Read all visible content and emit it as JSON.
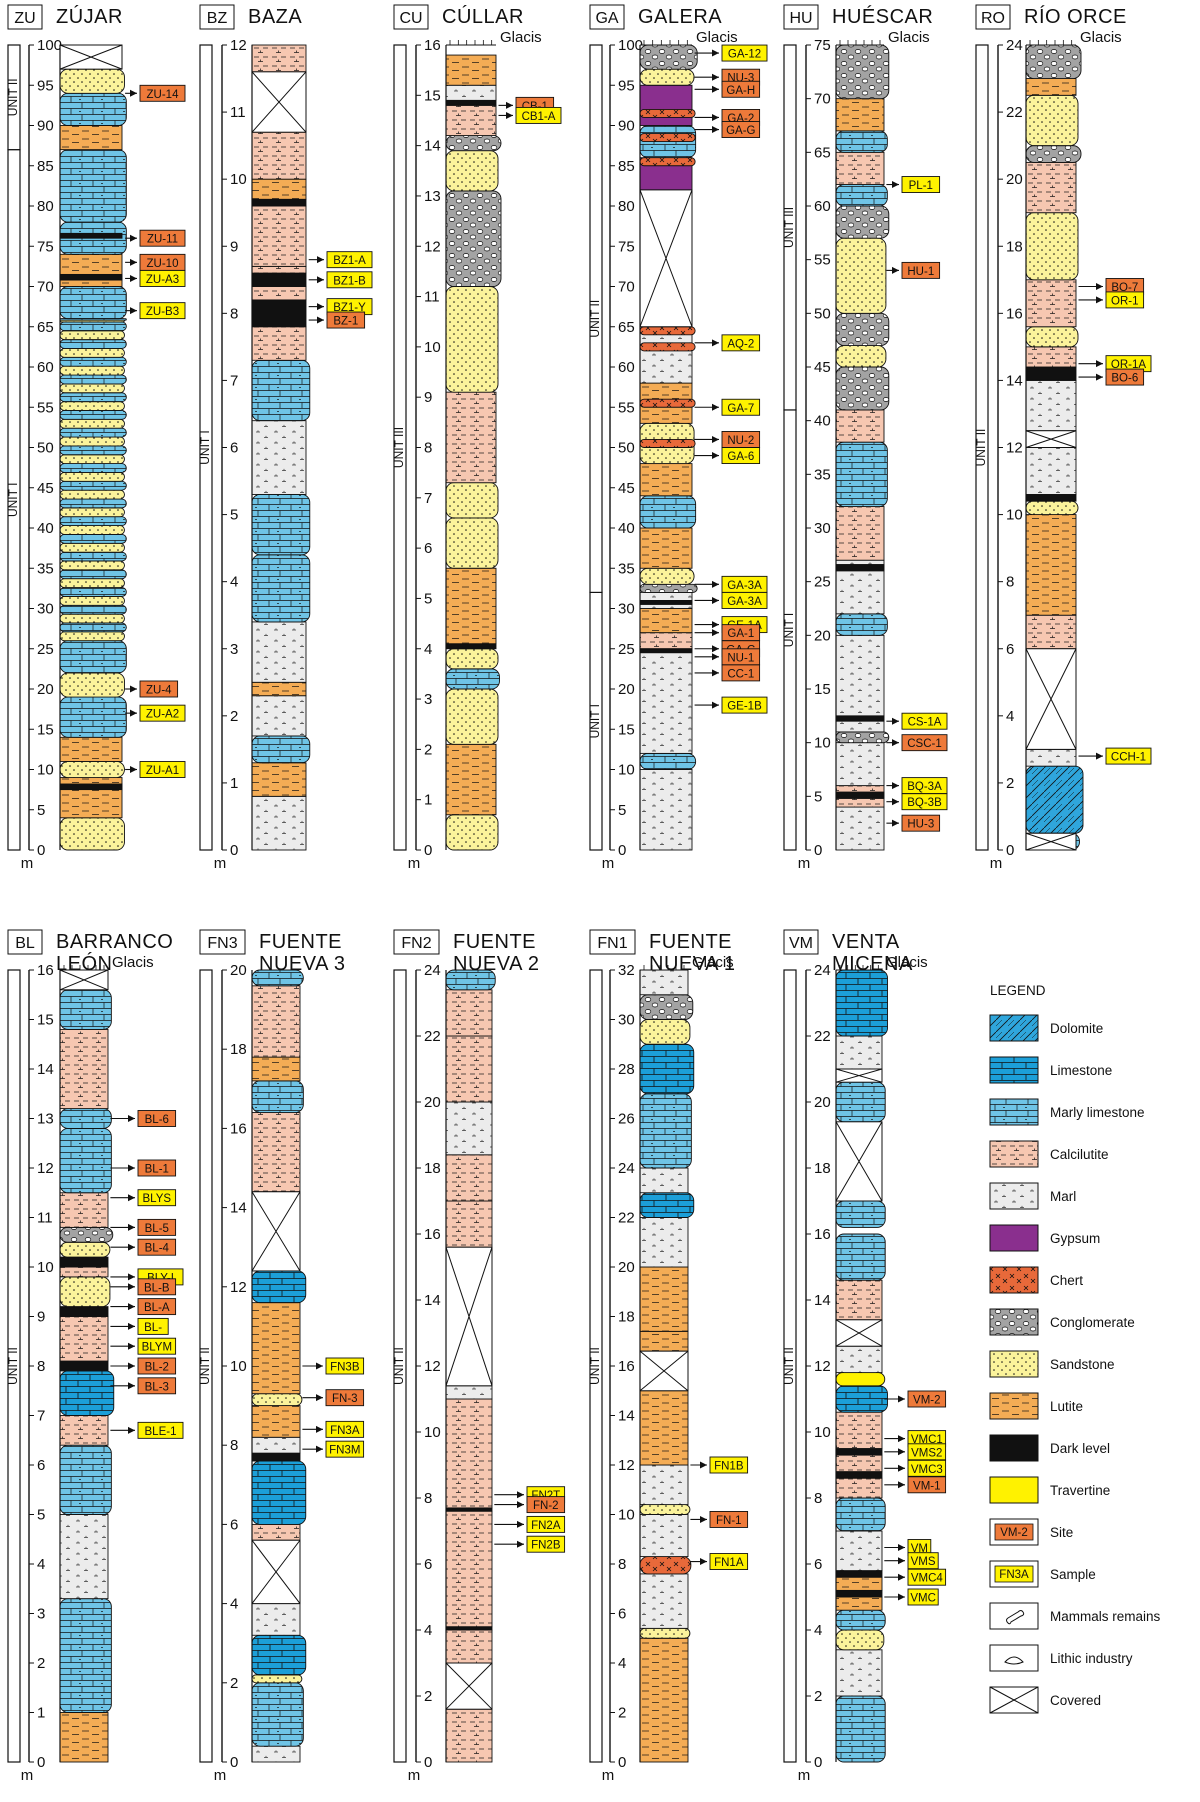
{
  "colors": {
    "dolomite": "#2fa6dc",
    "limestone": "#1c9fd8",
    "marly_limestone": "#6fc4e6",
    "calcilutite": "#f6c7b1",
    "marl": "#ececec",
    "gypsum": "#8a2f8e",
    "chert": "#e8693a",
    "conglomerate": "#a3a3a3",
    "sandstone": "#fbf39b",
    "lutite": "#f4ac55",
    "dark_level": "#111111",
    "travertine": "#fff200",
    "site_tag": "#ee7a3a",
    "sample_tag": "#fff200",
    "ink": "#111111"
  },
  "glacis_label": "Glacis",
  "axis_unit": "m",
  "sections": [
    {
      "key": "zu",
      "code": "ZU",
      "title": [
        "ZÚJAR"
      ],
      "max": 100,
      "ticks": [
        0,
        5,
        10,
        15,
        20,
        25,
        30,
        35,
        40,
        45,
        50,
        55,
        60,
        65,
        70,
        75,
        80,
        85,
        90,
        95,
        100
      ],
      "glacis": false,
      "units": [
        {
          "label": "UNIT I",
          "from": 0,
          "to": 87
        },
        {
          "label": "UNIT II",
          "from": 87,
          "to": 100
        }
      ],
      "tags": [
        {
          "text": "ZU-14",
          "type": "site"
        },
        {
          "text": "ZU-11",
          "type": "site"
        },
        {
          "text": "ZU-10",
          "type": "site"
        },
        {
          "text": "ZU-A3",
          "type": "sample"
        },
        {
          "text": "ZU-B3",
          "type": "sample"
        },
        {
          "text": "ZU-4",
          "type": "site"
        },
        {
          "text": "ZU-A2",
          "type": "sample"
        },
        {
          "text": "ZU-A1",
          "type": "sample"
        }
      ]
    },
    {
      "key": "bz",
      "code": "BZ",
      "title": [
        "BAZA"
      ],
      "max": 12,
      "ticks": [
        0,
        1,
        2,
        3,
        4,
        5,
        6,
        7,
        8,
        9,
        10,
        11,
        12
      ],
      "glacis": false,
      "units": [
        {
          "label": "UNIT I",
          "from": 0,
          "to": 12
        }
      ],
      "tags": [
        {
          "text": "BZ1-A",
          "type": "sample"
        },
        {
          "text": "BZ1-B",
          "type": "sample"
        },
        {
          "text": "BZ1-Y",
          "type": "sample"
        },
        {
          "text": "BZ-1",
          "type": "site"
        }
      ]
    },
    {
      "key": "cu",
      "code": "CU",
      "title": [
        "CÚLLAR"
      ],
      "max": 16,
      "ticks": [
        0,
        1,
        2,
        3,
        4,
        5,
        6,
        7,
        8,
        9,
        10,
        11,
        12,
        13,
        14,
        15,
        16
      ],
      "glacis": true,
      "units": [
        {
          "label": "UNIT III",
          "from": 0,
          "to": 16
        }
      ],
      "tags": [
        {
          "text": "CB-1",
          "type": "site"
        },
        {
          "text": "CB1-A",
          "type": "sample"
        }
      ]
    },
    {
      "key": "ga",
      "code": "GA",
      "title": [
        "GALERA"
      ],
      "max": 100,
      "ticks": [
        0,
        5,
        10,
        15,
        20,
        25,
        30,
        35,
        40,
        45,
        50,
        55,
        60,
        65,
        70,
        75,
        80,
        85,
        90,
        95,
        100
      ],
      "glacis": true,
      "units": [
        {
          "label": "UNIT I",
          "from": 0,
          "to": 32
        },
        {
          "label": "UNIT II",
          "from": 32,
          "to": 100
        }
      ],
      "tags": [
        {
          "text": "GA-12",
          "type": "sample"
        },
        {
          "text": "NU-3",
          "type": "site"
        },
        {
          "text": "GA-H",
          "type": "site"
        },
        {
          "text": "GA-2",
          "type": "site"
        },
        {
          "text": "GA-G",
          "type": "site"
        },
        {
          "text": "AQ-2",
          "type": "sample"
        },
        {
          "text": "GA-7",
          "type": "sample"
        },
        {
          "text": "NU-2",
          "type": "site"
        },
        {
          "text": "GA-6",
          "type": "sample"
        },
        {
          "text": "GA-3A",
          "type": "sample"
        },
        {
          "text": "GA-3A",
          "type": "sample"
        },
        {
          "text": "GE-1A",
          "type": "sample"
        },
        {
          "text": "GA-1",
          "type": "site"
        },
        {
          "text": "GA-C",
          "type": "site"
        },
        {
          "text": "NU-1",
          "type": "site"
        },
        {
          "text": "CC-1",
          "type": "site"
        },
        {
          "text": "GE-1B",
          "type": "sample"
        }
      ]
    },
    {
      "key": "hu",
      "code": "HU",
      "title": [
        "HUÉSCAR"
      ],
      "max": 75,
      "ticks": [
        0,
        5,
        10,
        15,
        20,
        25,
        30,
        35,
        40,
        45,
        50,
        55,
        60,
        65,
        70,
        75
      ],
      "glacis": true,
      "units": [
        {
          "label": "UNIT I",
          "from": 0,
          "to": 41
        },
        {
          "label": "UNIT III",
          "from": 41,
          "to": 75
        }
      ],
      "tags": [
        {
          "text": "PL-1",
          "type": "sample"
        },
        {
          "text": "HU-1",
          "type": "site"
        },
        {
          "text": "CS-1A",
          "type": "sample"
        },
        {
          "text": "CSC-1",
          "type": "site"
        },
        {
          "text": "BQ-3A",
          "type": "sample"
        },
        {
          "text": "BQ-3B",
          "type": "sample"
        },
        {
          "text": "HU-3",
          "type": "site"
        }
      ]
    },
    {
      "key": "ro",
      "code": "RO",
      "title": [
        "RÍO ORCE"
      ],
      "max": 24,
      "ticks": [
        0,
        2,
        4,
        6,
        8,
        10,
        12,
        14,
        16,
        18,
        20,
        22,
        24
      ],
      "glacis": true,
      "units": [
        {
          "label": "UNIT II",
          "from": 0,
          "to": 24
        }
      ],
      "tags": [
        {
          "text": "BO-7",
          "type": "site"
        },
        {
          "text": "OR-1",
          "type": "sample"
        },
        {
          "text": "OR-1A",
          "type": "sample"
        },
        {
          "text": "BO-6",
          "type": "site"
        },
        {
          "text": "CCH-1",
          "type": "sample"
        }
      ]
    },
    {
      "key": "bl",
      "code": "BL",
      "title": [
        "BARRANCO",
        "LEÓN"
      ],
      "max": 16,
      "ticks": [
        0,
        1,
        2,
        3,
        4,
        5,
        6,
        7,
        8,
        9,
        10,
        11,
        12,
        13,
        14,
        15,
        16
      ],
      "glacis": true,
      "units": [
        {
          "label": "UNIT II",
          "from": 0,
          "to": 16
        }
      ],
      "tags": [
        {
          "text": "BL-6",
          "type": "site"
        },
        {
          "text": "BL-1",
          "type": "site"
        },
        {
          "text": "BLYS",
          "type": "sample"
        },
        {
          "text": "BL-5",
          "type": "site"
        },
        {
          "text": "BL-4",
          "type": "site"
        },
        {
          "text": "BLY-I",
          "type": "sample"
        },
        {
          "text": "BL-B",
          "type": "site"
        },
        {
          "text": "BL-A",
          "type": "site"
        },
        {
          "text": "BL-",
          "type": "sample"
        },
        {
          "text": "BLYM",
          "type": "sample"
        },
        {
          "text": "BL-2",
          "type": "site"
        },
        {
          "text": "BL-3",
          "type": "site"
        },
        {
          "text": "BLE-1",
          "type": "sample"
        }
      ]
    },
    {
      "key": "fn3",
      "code": "FN3",
      "title": [
        "FUENTE",
        "NUEVA 3"
      ],
      "max": 20,
      "ticks": [
        0,
        2,
        4,
        6,
        8,
        10,
        12,
        14,
        16,
        18,
        20
      ],
      "glacis": false,
      "units": [
        {
          "label": "UNIT II",
          "from": 0,
          "to": 20
        }
      ],
      "tags": [
        {
          "text": "FN3B",
          "type": "sample"
        },
        {
          "text": "FN-3",
          "type": "site"
        },
        {
          "text": "FN3A",
          "type": "sample"
        },
        {
          "text": "FN3M",
          "type": "sample"
        }
      ]
    },
    {
      "key": "fn2",
      "code": "FN2",
      "title": [
        "FUENTE",
        "NUEVA 2"
      ],
      "max": 24,
      "ticks": [
        0,
        2,
        4,
        6,
        8,
        10,
        12,
        14,
        16,
        18,
        20,
        22,
        24
      ],
      "glacis": false,
      "units": [
        {
          "label": "UNIT II",
          "from": 0,
          "to": 24
        }
      ],
      "tags": [
        {
          "text": "FN2T",
          "type": "sample"
        },
        {
          "text": "FN-2",
          "type": "site"
        },
        {
          "text": "FN2A",
          "type": "sample"
        },
        {
          "text": "FN2B",
          "type": "sample"
        }
      ]
    },
    {
      "key": "fn1",
      "code": "FN1",
      "title": [
        "FUENTE",
        "NUEVA 1"
      ],
      "max": 32,
      "ticks": [
        0,
        2,
        4,
        6,
        8,
        10,
        12,
        14,
        16,
        18,
        20,
        22,
        24,
        26,
        28,
        30,
        32
      ],
      "glacis": true,
      "units": [
        {
          "label": "UNIT II",
          "from": 0,
          "to": 32
        }
      ],
      "tags": [
        {
          "text": "FN1B",
          "type": "sample"
        },
        {
          "text": "FN-1",
          "type": "site"
        },
        {
          "text": "FN1A",
          "type": "sample"
        }
      ]
    },
    {
      "key": "vm",
      "code": "VM",
      "title": [
        "VENTA",
        "MICENA"
      ],
      "max": 24,
      "ticks": [
        0,
        2,
        4,
        6,
        8,
        10,
        12,
        14,
        16,
        18,
        20,
        22,
        24
      ],
      "glacis": true,
      "units": [
        {
          "label": "UNIT II",
          "from": 0,
          "to": 24
        }
      ],
      "tags": [
        {
          "text": "VM-2",
          "type": "site"
        },
        {
          "text": "VMC1",
          "type": "sample"
        },
        {
          "text": "VMS2",
          "type": "sample"
        },
        {
          "text": "VMC3",
          "type": "sample"
        },
        {
          "text": "VM-1",
          "type": "site"
        },
        {
          "text": "VM",
          "type": "sample"
        },
        {
          "text": "VMS",
          "type": "sample"
        },
        {
          "text": "VMC4",
          "type": "sample"
        },
        {
          "text": "VMC",
          "type": "sample"
        }
      ]
    }
  ],
  "legend": {
    "title": "LEGEND",
    "items": [
      {
        "label": "Dolomite",
        "swatch": "dolomite"
      },
      {
        "label": "Limestone",
        "swatch": "limestone"
      },
      {
        "label": "Marly limestone",
        "swatch": "marly_limestone"
      },
      {
        "label": "Calcilutite",
        "swatch": "calcilutite"
      },
      {
        "label": "Marl",
        "swatch": "marl"
      },
      {
        "label": "Gypsum",
        "swatch": "gypsum"
      },
      {
        "label": "Chert",
        "swatch": "chert"
      },
      {
        "label": "Conglomerate",
        "swatch": "conglomerate"
      },
      {
        "label": "Sandstone",
        "swatch": "sandstone"
      },
      {
        "label": "Lutite",
        "swatch": "lutite"
      },
      {
        "label": "Dark level",
        "swatch": "dark_level"
      },
      {
        "label": "Travertine",
        "swatch": "travertine"
      },
      {
        "label": "Site",
        "swatch": "site",
        "tag": "VM-2"
      },
      {
        "label": "Sample",
        "swatch": "sample",
        "tag": "FN3A"
      },
      {
        "label": "Mammals remains",
        "swatch": "bone"
      },
      {
        "label": "Lithic industry",
        "swatch": "lithic"
      },
      {
        "label": "Covered",
        "swatch": "covered"
      }
    ]
  }
}
